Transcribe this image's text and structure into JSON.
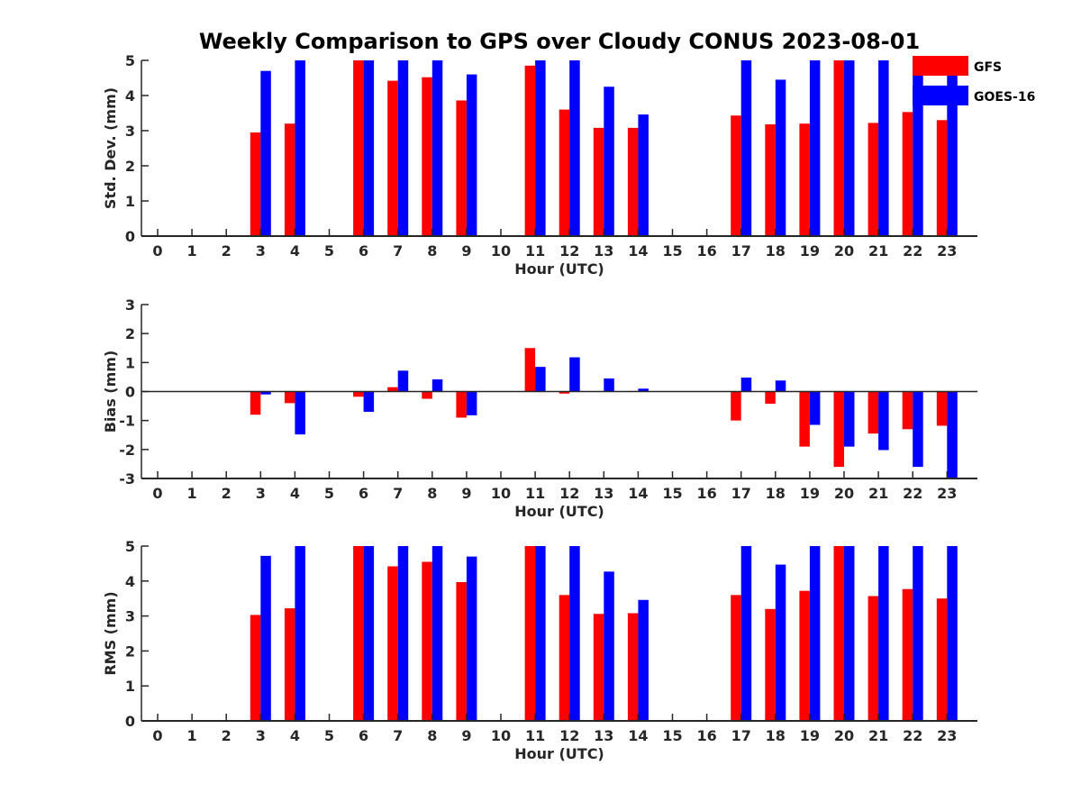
{
  "title": "Weekly Comparison to GPS over Cloudy CONUS 2023-08-01",
  "legend": [
    {
      "name": "GFS",
      "color": "#ff0000"
    },
    {
      "name": "GOES-16",
      "color": "#0000ff"
    }
  ],
  "chart_data": [
    {
      "type": "bar",
      "xlabel": "Hour (UTC)",
      "ylabel": "Std. Dev. (mm)",
      "ylim": [
        0,
        5
      ],
      "yticks": [
        0,
        1,
        2,
        3,
        4,
        5
      ],
      "categories": [
        "0",
        "1",
        "2",
        "3",
        "4",
        "5",
        "6",
        "7",
        "8",
        "9",
        "10",
        "11",
        "12",
        "13",
        "14",
        "15",
        "16",
        "17",
        "18",
        "19",
        "20",
        "21",
        "22",
        "23"
      ],
      "series": [
        {
          "name": "GFS",
          "color": "#ff0000",
          "values": [
            null,
            null,
            null,
            2.95,
            3.2,
            null,
            5,
            4.42,
            4.52,
            3.86,
            null,
            4.85,
            3.6,
            3.08,
            3.08,
            null,
            null,
            3.43,
            3.18,
            3.2,
            5,
            3.22,
            3.53,
            3.3
          ]
        },
        {
          "name": "GOES-16",
          "color": "#0000ff",
          "values": [
            null,
            null,
            null,
            4.7,
            5,
            null,
            5,
            5,
            5,
            4.6,
            null,
            5,
            5,
            4.25,
            3.46,
            null,
            null,
            5,
            4.45,
            5,
            5,
            5,
            5,
            5
          ]
        }
      ],
      "legend_position": "top-right"
    },
    {
      "type": "bar",
      "xlabel": "Hour (UTC)",
      "ylabel": "Bias (mm)",
      "ylim": [
        -3,
        3
      ],
      "yticks": [
        -3,
        -2,
        -1,
        0,
        1,
        2,
        3
      ],
      "zero_line": true,
      "categories": [
        "0",
        "1",
        "2",
        "3",
        "4",
        "5",
        "6",
        "7",
        "8",
        "9",
        "10",
        "11",
        "12",
        "13",
        "14",
        "15",
        "16",
        "17",
        "18",
        "19",
        "20",
        "21",
        "22",
        "23"
      ],
      "series": [
        {
          "name": "GFS",
          "color": "#ff0000",
          "values": [
            null,
            null,
            null,
            -0.8,
            -0.4,
            null,
            -0.18,
            0.15,
            -0.25,
            -0.9,
            null,
            1.5,
            -0.07,
            0,
            0.02,
            null,
            null,
            -1.0,
            -0.42,
            -1.9,
            -2.6,
            -1.45,
            -1.3,
            -1.18
          ]
        },
        {
          "name": "GOES-16",
          "color": "#0000ff",
          "values": [
            null,
            null,
            null,
            -0.1,
            -1.48,
            null,
            -0.7,
            0.72,
            0.42,
            -0.82,
            null,
            0.85,
            1.18,
            0.45,
            0.1,
            null,
            null,
            0.48,
            0.38,
            -1.15,
            -1.9,
            -2.02,
            -2.6,
            -3
          ]
        }
      ]
    },
    {
      "type": "bar",
      "xlabel": "Hour (UTC)",
      "ylabel": "RMS (mm)",
      "ylim": [
        0,
        5
      ],
      "yticks": [
        0,
        1,
        2,
        3,
        4,
        5
      ],
      "categories": [
        "0",
        "1",
        "2",
        "3",
        "4",
        "5",
        "6",
        "7",
        "8",
        "9",
        "10",
        "11",
        "12",
        "13",
        "14",
        "15",
        "16",
        "17",
        "18",
        "19",
        "20",
        "21",
        "22",
        "23"
      ],
      "series": [
        {
          "name": "GFS",
          "color": "#ff0000",
          "values": [
            null,
            null,
            null,
            3.03,
            3.22,
            null,
            5,
            4.42,
            4.55,
            3.97,
            null,
            5,
            3.6,
            3.06,
            3.08,
            null,
            null,
            3.6,
            3.2,
            3.72,
            5,
            3.57,
            3.77,
            3.5
          ]
        },
        {
          "name": "GOES-16",
          "color": "#0000ff",
          "values": [
            null,
            null,
            null,
            4.72,
            5,
            null,
            5,
            5,
            5,
            4.7,
            null,
            5,
            5,
            4.27,
            3.46,
            null,
            null,
            5,
            4.47,
            5,
            5,
            5,
            5,
            5
          ]
        }
      ]
    }
  ]
}
